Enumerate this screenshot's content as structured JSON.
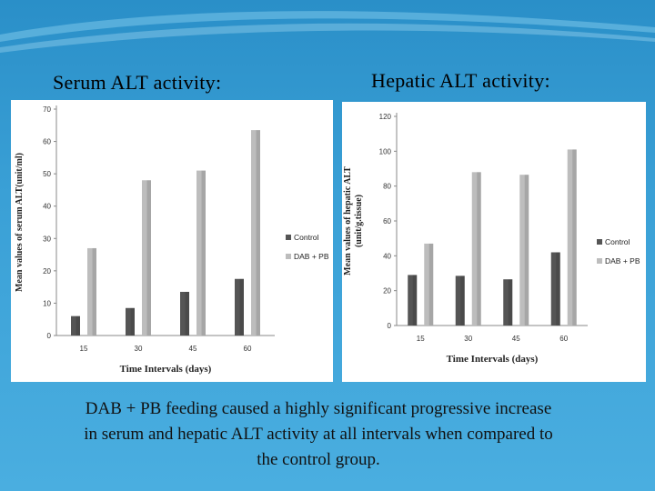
{
  "headings": {
    "left": "Serum ALT activity:",
    "right": "Hepatic ALT activity:"
  },
  "caption": {
    "line1": "DAB + PB feeding  caused a highly significant progressive increase",
    "line2": "in serum and hepatic ALT activity at all intervals when compared to",
    "line3": "the control group."
  },
  "colors": {
    "control": "#555555",
    "dab_pb": "#bdbdbd"
  },
  "chart_data": [
    {
      "type": "bar",
      "title": "",
      "xlabel": "Time Intervals (days)",
      "ylabel": "Mean values of serum ALT(unit/ml)",
      "categories": [
        "15",
        "30",
        "45",
        "60"
      ],
      "ylim": [
        0,
        70
      ],
      "yticks": [
        0,
        10,
        20,
        30,
        40,
        50,
        60,
        70
      ],
      "legend_position": "right",
      "series": [
        {
          "name": "Control",
          "values": [
            6,
            8.5,
            13.5,
            17.5
          ]
        },
        {
          "name": "DAB + PB",
          "values": [
            27,
            48,
            51,
            63.5
          ]
        }
      ]
    },
    {
      "type": "bar",
      "title": "",
      "xlabel": "Time Intervals (days)",
      "ylabel": "Mean values of hepatic ALT (unit/g.tissue)",
      "categories": [
        "15",
        "30",
        "45",
        "60"
      ],
      "ylim": [
        0,
        120
      ],
      "yticks": [
        0,
        20,
        40,
        60,
        80,
        100,
        120
      ],
      "legend_position": "right",
      "series": [
        {
          "name": "Control",
          "values": [
            29,
            28.5,
            26.5,
            42
          ]
        },
        {
          "name": "DAB + PB",
          "values": [
            47,
            88,
            86.5,
            101
          ]
        }
      ]
    }
  ]
}
